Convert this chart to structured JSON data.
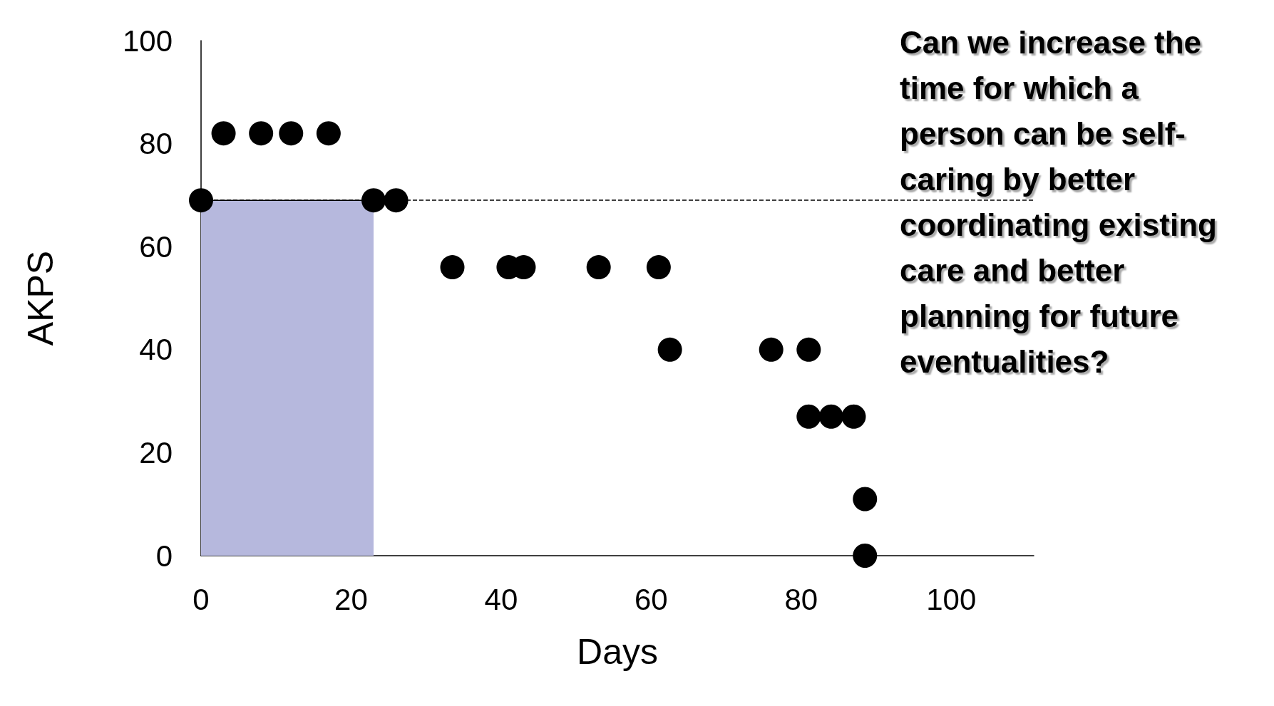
{
  "chart_data": {
    "type": "scatter",
    "xlabel": "Days",
    "ylabel": "AKPS",
    "xlim": [
      0,
      111
    ],
    "xticks": [
      0,
      20,
      40,
      60,
      80,
      100
    ],
    "ylim": [
      0,
      100
    ],
    "yticks": [
      0,
      20,
      40,
      60,
      80,
      100
    ],
    "grid": false,
    "series": [
      {
        "type": "area",
        "color": "#b6b8dd",
        "x": [
          0,
          23
        ],
        "values": [
          69,
          69
        ]
      },
      {
        "marker": "circle",
        "color": "#000000",
        "x": [
          0,
          3,
          8,
          12,
          17,
          23,
          26,
          33.5,
          41,
          43,
          53,
          61,
          62.5,
          76,
          81,
          81,
          84,
          87,
          88.5,
          88.5
        ],
        "values": [
          69,
          82,
          82,
          82,
          82,
          69,
          69,
          56,
          56,
          56,
          56,
          56,
          40,
          40,
          40,
          27,
          27,
          27,
          11,
          0
        ]
      }
    ],
    "ref_lines": [
      {
        "axis": "y",
        "value": 69,
        "color": "#000000",
        "line_style": "dashed"
      }
    ],
    "annotations": [
      "Can we increase the time for which a person can be self-caring by better coordinating existing care and better planning for future eventualities?"
    ]
  }
}
